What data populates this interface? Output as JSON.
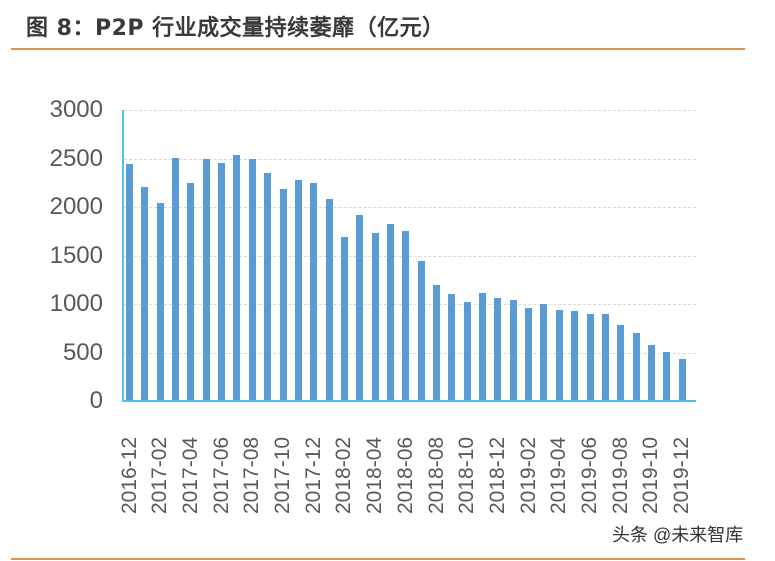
{
  "header": {
    "title": "图 8：P2P 行业成交量持续萎靡（亿元）"
  },
  "watermark": "头条 @未来智库",
  "colors": {
    "bar": "#5b9bd5",
    "axis": "#4fc3e6",
    "rule": "#e0954a",
    "grid": "#d9d9d9",
    "tick_text": "#595959"
  },
  "chart_data": {
    "type": "bar",
    "title": "图 8：P2P 行业成交量持续萎靡（亿元）",
    "xlabel": "",
    "ylabel": "",
    "ylim": [
      0,
      3000
    ],
    "yticks": [
      0,
      500,
      1000,
      1500,
      2000,
      2500,
      3000
    ],
    "grid": true,
    "grid_style": "dashed horizontal",
    "legend": "none",
    "categories": [
      "2016-12",
      "2017-01",
      "2017-02",
      "2017-03",
      "2017-04",
      "2017-05",
      "2017-06",
      "2017-07",
      "2017-08",
      "2017-09",
      "2017-10",
      "2017-11",
      "2017-12",
      "2018-01",
      "2018-02",
      "2018-03",
      "2018-04",
      "2018-05",
      "2018-06",
      "2018-07",
      "2018-08",
      "2018-09",
      "2018-10",
      "2018-11",
      "2018-12",
      "2019-01",
      "2019-02",
      "2019-03",
      "2019-04",
      "2019-05",
      "2019-06",
      "2019-07",
      "2019-08",
      "2019-09",
      "2019-10",
      "2019-11",
      "2019-12"
    ],
    "xtick_labels": [
      "2016-12",
      "2017-02",
      "2017-04",
      "2017-06",
      "2017-08",
      "2017-10",
      "2017-12",
      "2018-02",
      "2018-04",
      "2018-06",
      "2018-08",
      "2018-10",
      "2018-12",
      "2019-02",
      "2019-04",
      "2019-06",
      "2019-08",
      "2019-10",
      "2019-12"
    ],
    "values": [
      2440,
      2210,
      2040,
      2510,
      2250,
      2490,
      2455,
      2540,
      2500,
      2350,
      2190,
      2280,
      2245,
      2085,
      1695,
      1915,
      1735,
      1825,
      1755,
      1440,
      1195,
      1105,
      1020,
      1115,
      1060,
      1040,
      960,
      1000,
      940,
      930,
      900,
      900,
      780,
      700,
      575,
      510,
      435
    ]
  }
}
